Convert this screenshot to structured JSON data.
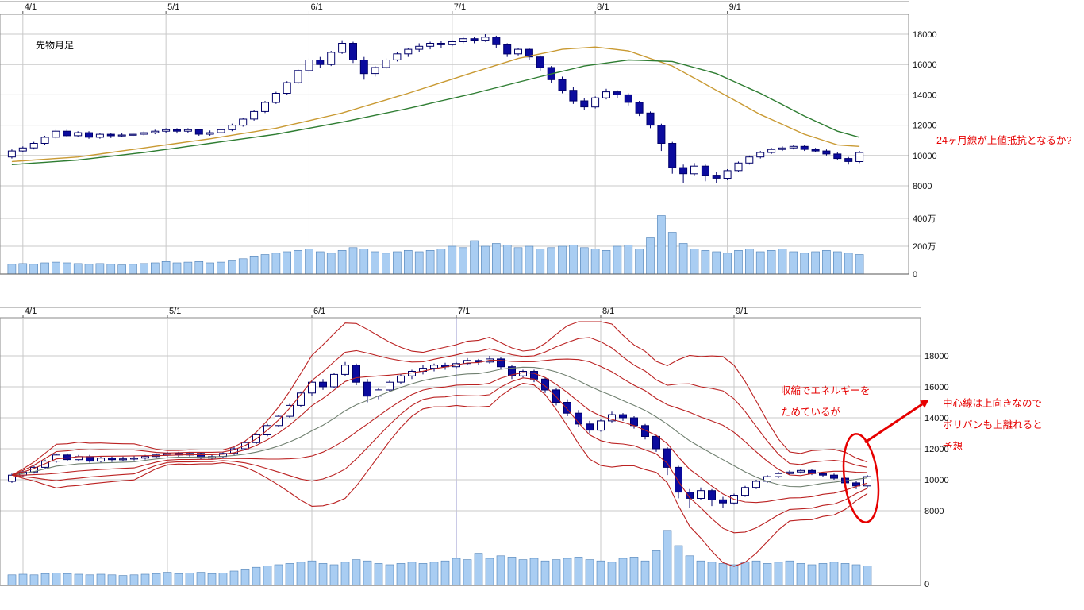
{
  "colors": {
    "background": "#ffffff",
    "grid": "#c9c9c9",
    "axis_line": "#8a8a8a",
    "axis_text": "#111111",
    "candle_up": "#ffffff",
    "candle_down": "#0b0b9e",
    "candle_border": "#00006a",
    "volume_fill": "#a9cdf2",
    "volume_border": "#4d7fb5",
    "annotation": "#e60000"
  },
  "chart_data": [
    {
      "type": "candlestick",
      "title": "先物月足",
      "x_tick_labels": [
        "4/1",
        "5/1",
        "6/1",
        "7/1",
        "8/1",
        "9/1"
      ],
      "x_tick_indices": [
        1,
        14,
        27,
        40,
        53,
        65
      ],
      "y_ticks": [
        18000,
        16000,
        14000,
        12000,
        10000,
        8000
      ],
      "ylim": [
        7500,
        19000
      ],
      "volume_ticks": [
        {
          "label": "400万",
          "value": 400
        },
        {
          "label": "200万",
          "value": 200
        },
        {
          "label": "0",
          "value": 0
        }
      ],
      "volume_unit": "万",
      "annotation": "24ヶ月線が上値抵抗となるか?",
      "ohlc": [
        [
          9900,
          10400,
          9800,
          10300
        ],
        [
          10300,
          10600,
          10200,
          10500
        ],
        [
          10500,
          10900,
          10400,
          10800
        ],
        [
          10800,
          11300,
          10700,
          11200
        ],
        [
          11200,
          11700,
          11100,
          11600
        ],
        [
          11600,
          11700,
          11200,
          11300
        ],
        [
          11300,
          11600,
          11200,
          11500
        ],
        [
          11500,
          11600,
          11100,
          11200
        ],
        [
          11200,
          11500,
          11100,
          11400
        ],
        [
          11400,
          11500,
          11150,
          11300
        ],
        [
          11300,
          11500,
          11200,
          11350
        ],
        [
          11350,
          11550,
          11250,
          11400
        ],
        [
          11400,
          11600,
          11300,
          11500
        ],
        [
          11500,
          11700,
          11400,
          11600
        ],
        [
          11600,
          11800,
          11500,
          11700
        ],
        [
          11700,
          11800,
          11450,
          11600
        ],
        [
          11600,
          11800,
          11500,
          11700
        ],
        [
          11700,
          11750,
          11300,
          11400
        ],
        [
          11400,
          11650,
          11300,
          11500
        ],
        [
          11500,
          11800,
          11400,
          11700
        ],
        [
          11700,
          12100,
          11600,
          12000
        ],
        [
          12000,
          12500,
          11900,
          12400
        ],
        [
          12400,
          13000,
          12300,
          12900
        ],
        [
          12900,
          13600,
          12800,
          13500
        ],
        [
          13500,
          14200,
          13400,
          14100
        ],
        [
          14100,
          14900,
          14000,
          14800
        ],
        [
          14800,
          15700,
          14700,
          15600
        ],
        [
          15600,
          16400,
          15400,
          16300
        ],
        [
          16300,
          16500,
          15800,
          16000
        ],
        [
          16000,
          16900,
          15900,
          16800
        ],
        [
          16800,
          17600,
          16700,
          17400
        ],
        [
          17400,
          17500,
          16100,
          16300
        ],
        [
          16300,
          16500,
          15000,
          15400
        ],
        [
          15400,
          15900,
          15200,
          15800
        ],
        [
          15800,
          16400,
          15700,
          16300
        ],
        [
          16300,
          16800,
          16200,
          16700
        ],
        [
          16700,
          17100,
          16500,
          17000
        ],
        [
          17000,
          17400,
          16800,
          17200
        ],
        [
          17200,
          17500,
          17000,
          17400
        ],
        [
          17400,
          17550,
          17100,
          17300
        ],
        [
          17300,
          17600,
          17200,
          17500
        ],
        [
          17500,
          17850,
          17400,
          17700
        ],
        [
          17700,
          17800,
          17400,
          17600
        ],
        [
          17600,
          18000,
          17500,
          17800
        ],
        [
          17800,
          17900,
          17100,
          17300
        ],
        [
          17300,
          17400,
          16500,
          16700
        ],
        [
          16700,
          17100,
          16600,
          17000
        ],
        [
          17000,
          17100,
          16300,
          16500
        ],
        [
          16500,
          16600,
          15600,
          15800
        ],
        [
          15800,
          15900,
          14800,
          15000
        ],
        [
          15000,
          15200,
          14100,
          14300
        ],
        [
          14300,
          14500,
          13400,
          13600
        ],
        [
          13600,
          13800,
          13000,
          13200
        ],
        [
          13200,
          13900,
          13100,
          13800
        ],
        [
          13800,
          14400,
          13700,
          14200
        ],
        [
          14200,
          14300,
          13800,
          14000
        ],
        [
          14000,
          14100,
          13300,
          13500
        ],
        [
          13500,
          13600,
          12600,
          12800
        ],
        [
          12800,
          12900,
          11800,
          12000
        ],
        [
          12000,
          12100,
          10300,
          10800
        ],
        [
          10800,
          10900,
          8800,
          9200
        ],
        [
          9200,
          9400,
          8200,
          8800
        ],
        [
          8800,
          9500,
          8700,
          9300
        ],
        [
          9300,
          9400,
          8300,
          8700
        ],
        [
          8700,
          8900,
          8200,
          8500
        ],
        [
          8500,
          9100,
          8400,
          9000
        ],
        [
          9000,
          9600,
          8900,
          9500
        ],
        [
          9500,
          10000,
          9400,
          9900
        ],
        [
          9900,
          10300,
          9800,
          10200
        ],
        [
          10200,
          10500,
          10100,
          10400
        ],
        [
          10400,
          10600,
          10300,
          10500
        ],
        [
          10500,
          10700,
          10400,
          10600
        ],
        [
          10600,
          10700,
          10300,
          10400
        ],
        [
          10400,
          10500,
          10200,
          10300
        ],
        [
          10300,
          10400,
          10000,
          10100
        ],
        [
          10100,
          10200,
          9700,
          9800
        ],
        [
          9800,
          9900,
          9400,
          9600
        ],
        [
          9600,
          10300,
          9500,
          10200
        ]
      ],
      "volume": [
        70,
        75,
        70,
        80,
        85,
        80,
        75,
        70,
        75,
        70,
        65,
        70,
        75,
        80,
        90,
        80,
        85,
        90,
        80,
        85,
        100,
        110,
        130,
        140,
        150,
        160,
        170,
        180,
        160,
        150,
        170,
        190,
        180,
        160,
        150,
        160,
        170,
        160,
        170,
        180,
        200,
        190,
        240,
        200,
        220,
        210,
        190,
        200,
        180,
        190,
        200,
        210,
        190,
        180,
        170,
        200,
        210,
        180,
        260,
        420,
        300,
        220,
        180,
        170,
        160,
        150,
        170,
        180,
        160,
        170,
        180,
        160,
        150,
        160,
        170,
        160,
        150,
        140
      ],
      "overlays": [
        {
          "name": "ma-short",
          "color": "#c99a33",
          "points": [
            [
              0,
              9600
            ],
            [
              6,
              9900
            ],
            [
              12,
              10500
            ],
            [
              18,
              11100
            ],
            [
              24,
              11800
            ],
            [
              30,
              12800
            ],
            [
              36,
              14100
            ],
            [
              42,
              15500
            ],
            [
              46,
              16400
            ],
            [
              50,
              17000
            ],
            [
              53,
              17150
            ],
            [
              56,
              16900
            ],
            [
              60,
              15900
            ],
            [
              64,
              14300
            ],
            [
              68,
              12700
            ],
            [
              72,
              11400
            ],
            [
              75,
              10700
            ],
            [
              77,
              10600
            ]
          ]
        },
        {
          "name": "ma-24month",
          "color": "#2e7d32",
          "points": [
            [
              0,
              9400
            ],
            [
              6,
              9700
            ],
            [
              12,
              10200
            ],
            [
              18,
              10800
            ],
            [
              24,
              11400
            ],
            [
              30,
              12200
            ],
            [
              36,
              13100
            ],
            [
              42,
              14100
            ],
            [
              48,
              15200
            ],
            [
              52,
              15900
            ],
            [
              56,
              16300
            ],
            [
              60,
              16200
            ],
            [
              64,
              15400
            ],
            [
              68,
              14100
            ],
            [
              72,
              12600
            ],
            [
              75,
              11600
            ],
            [
              77,
              11200
            ]
          ]
        }
      ]
    },
    {
      "type": "candlestick-bollinger",
      "x_tick_labels": [
        "4/1",
        "5/1",
        "6/1",
        "7/1",
        "8/1",
        "9/1"
      ],
      "x_tick_indices": [
        1,
        14,
        27,
        40,
        53,
        65
      ],
      "y_ticks": [
        18000,
        16000,
        14000,
        12000,
        10000,
        8000
      ],
      "ylim": [
        7500,
        19000
      ],
      "volume_ticks": [
        {
          "label": "0",
          "value": 0
        }
      ],
      "ohlc_same_as": 0,
      "bollinger": {
        "window": 12,
        "sigmas": [
          1,
          2,
          3
        ],
        "band_color": "#bb2222",
        "center_color": "#708070"
      },
      "annotations": [
        "収縮でエネルギーをためているが",
        "中心線は上向きなのでボリバンも上離れると予想"
      ]
    }
  ]
}
